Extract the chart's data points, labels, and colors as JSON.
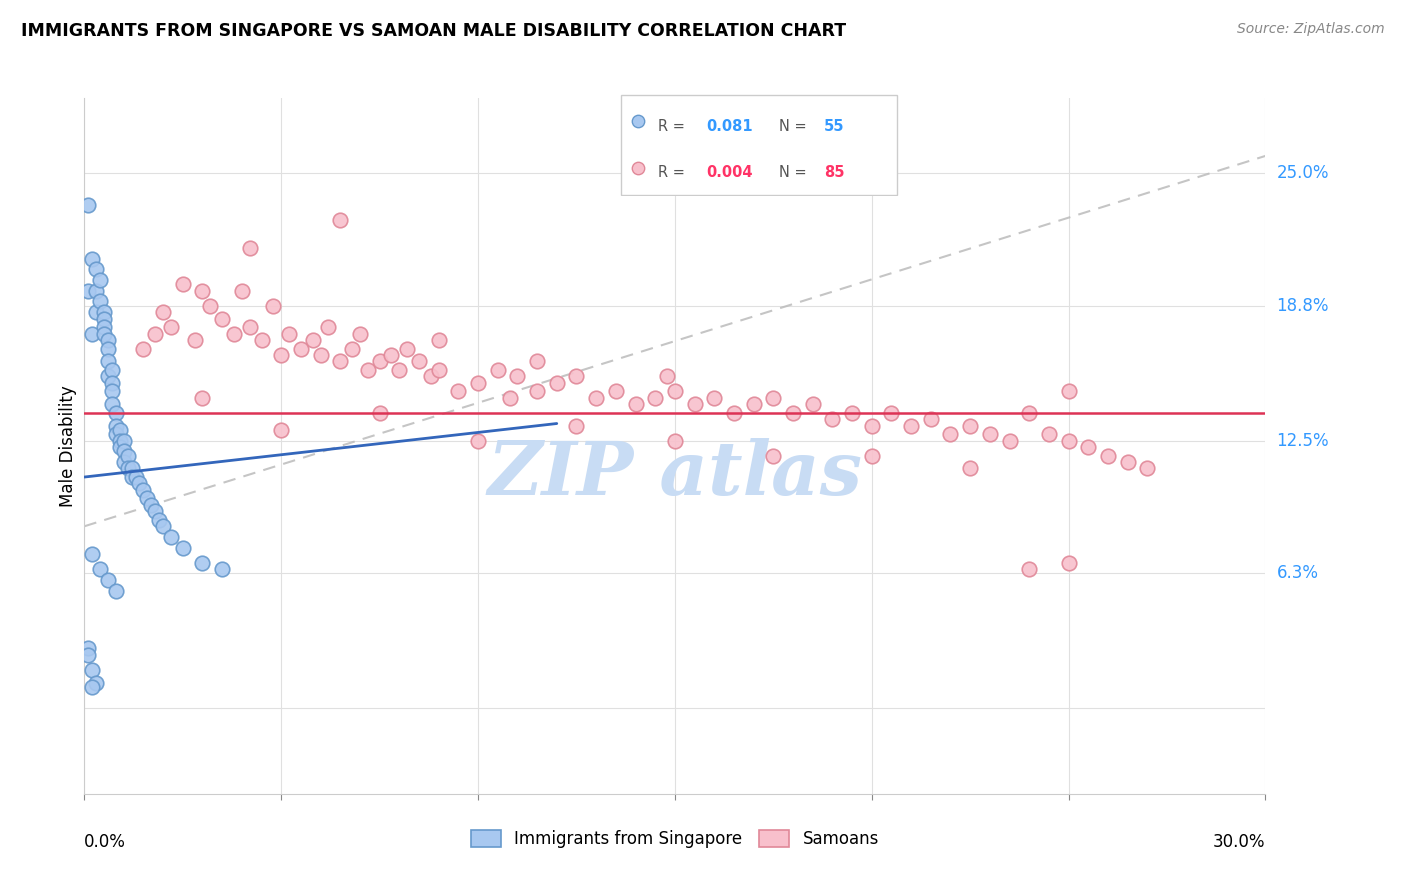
{
  "title": "IMMIGRANTS FROM SINGAPORE VS SAMOAN MALE DISABILITY CORRELATION CHART",
  "source": "Source: ZipAtlas.com",
  "ylabel": "Male Disability",
  "yticks": [
    0.0,
    0.063,
    0.125,
    0.188,
    0.25
  ],
  "ytick_labels": [
    "",
    "6.3%",
    "12.5%",
    "18.8%",
    "25.0%"
  ],
  "xlim": [
    0.0,
    0.3
  ],
  "ylim": [
    -0.04,
    0.285
  ],
  "blue_color": "#a8c8f0",
  "blue_edge_color": "#6699cc",
  "pink_color": "#f8c0cc",
  "pink_edge_color": "#e08898",
  "blue_line_color": "#3366bb",
  "pink_line_color": "#dd3355",
  "dashed_line_color": "#bbbbbb",
  "watermark_color": "#c8dcf4",
  "singapore_N": 55,
  "samoan_N": 85,
  "legend_r1": "0.081",
  "legend_n1": "55",
  "legend_r2": "0.004",
  "legend_n2": "85",
  "blue_text_color": "#3399ff",
  "pink_text_color": "#ff3366",
  "singapore_x": [
    0.001,
    0.001,
    0.002,
    0.002,
    0.003,
    0.003,
    0.003,
    0.004,
    0.004,
    0.005,
    0.005,
    0.005,
    0.005,
    0.006,
    0.006,
    0.006,
    0.006,
    0.007,
    0.007,
    0.007,
    0.007,
    0.008,
    0.008,
    0.008,
    0.009,
    0.009,
    0.009,
    0.01,
    0.01,
    0.01,
    0.011,
    0.011,
    0.012,
    0.012,
    0.013,
    0.014,
    0.015,
    0.016,
    0.017,
    0.018,
    0.019,
    0.02,
    0.022,
    0.025,
    0.03,
    0.035,
    0.002,
    0.004,
    0.006,
    0.008,
    0.001,
    0.002,
    0.003,
    0.001,
    0.002
  ],
  "singapore_y": [
    0.235,
    0.195,
    0.21,
    0.175,
    0.205,
    0.195,
    0.185,
    0.2,
    0.19,
    0.185,
    0.182,
    0.178,
    0.175,
    0.172,
    0.168,
    0.162,
    0.155,
    0.158,
    0.152,
    0.148,
    0.142,
    0.138,
    0.132,
    0.128,
    0.13,
    0.125,
    0.122,
    0.125,
    0.12,
    0.115,
    0.118,
    0.112,
    0.112,
    0.108,
    0.108,
    0.105,
    0.102,
    0.098,
    0.095,
    0.092,
    0.088,
    0.085,
    0.08,
    0.075,
    0.068,
    0.065,
    0.072,
    0.065,
    0.06,
    0.055,
    0.028,
    0.018,
    0.012,
    0.025,
    0.01
  ],
  "samoan_x": [
    0.015,
    0.018,
    0.02,
    0.022,
    0.025,
    0.028,
    0.03,
    0.032,
    0.035,
    0.038,
    0.04,
    0.042,
    0.045,
    0.048,
    0.05,
    0.052,
    0.055,
    0.058,
    0.06,
    0.062,
    0.065,
    0.068,
    0.07,
    0.072,
    0.075,
    0.078,
    0.08,
    0.082,
    0.085,
    0.088,
    0.09,
    0.095,
    0.1,
    0.105,
    0.108,
    0.11,
    0.115,
    0.12,
    0.125,
    0.13,
    0.135,
    0.14,
    0.145,
    0.148,
    0.15,
    0.155,
    0.16,
    0.165,
    0.17,
    0.175,
    0.18,
    0.185,
    0.19,
    0.195,
    0.2,
    0.205,
    0.21,
    0.215,
    0.22,
    0.225,
    0.23,
    0.235,
    0.24,
    0.245,
    0.25,
    0.255,
    0.26,
    0.265,
    0.27,
    0.03,
    0.05,
    0.075,
    0.1,
    0.125,
    0.15,
    0.175,
    0.2,
    0.225,
    0.25,
    0.24,
    0.042,
    0.065,
    0.09,
    0.115,
    0.25
  ],
  "samoan_y": [
    0.168,
    0.175,
    0.185,
    0.178,
    0.198,
    0.172,
    0.195,
    0.188,
    0.182,
    0.175,
    0.195,
    0.178,
    0.172,
    0.188,
    0.165,
    0.175,
    0.168,
    0.172,
    0.165,
    0.178,
    0.162,
    0.168,
    0.175,
    0.158,
    0.162,
    0.165,
    0.158,
    0.168,
    0.162,
    0.155,
    0.158,
    0.148,
    0.152,
    0.158,
    0.145,
    0.155,
    0.148,
    0.152,
    0.155,
    0.145,
    0.148,
    0.142,
    0.145,
    0.155,
    0.148,
    0.142,
    0.145,
    0.138,
    0.142,
    0.145,
    0.138,
    0.142,
    0.135,
    0.138,
    0.132,
    0.138,
    0.132,
    0.135,
    0.128,
    0.132,
    0.128,
    0.125,
    0.138,
    0.128,
    0.125,
    0.122,
    0.118,
    0.115,
    0.112,
    0.145,
    0.13,
    0.138,
    0.125,
    0.132,
    0.125,
    0.118,
    0.118,
    0.112,
    0.068,
    0.065,
    0.215,
    0.228,
    0.172,
    0.162,
    0.148
  ]
}
